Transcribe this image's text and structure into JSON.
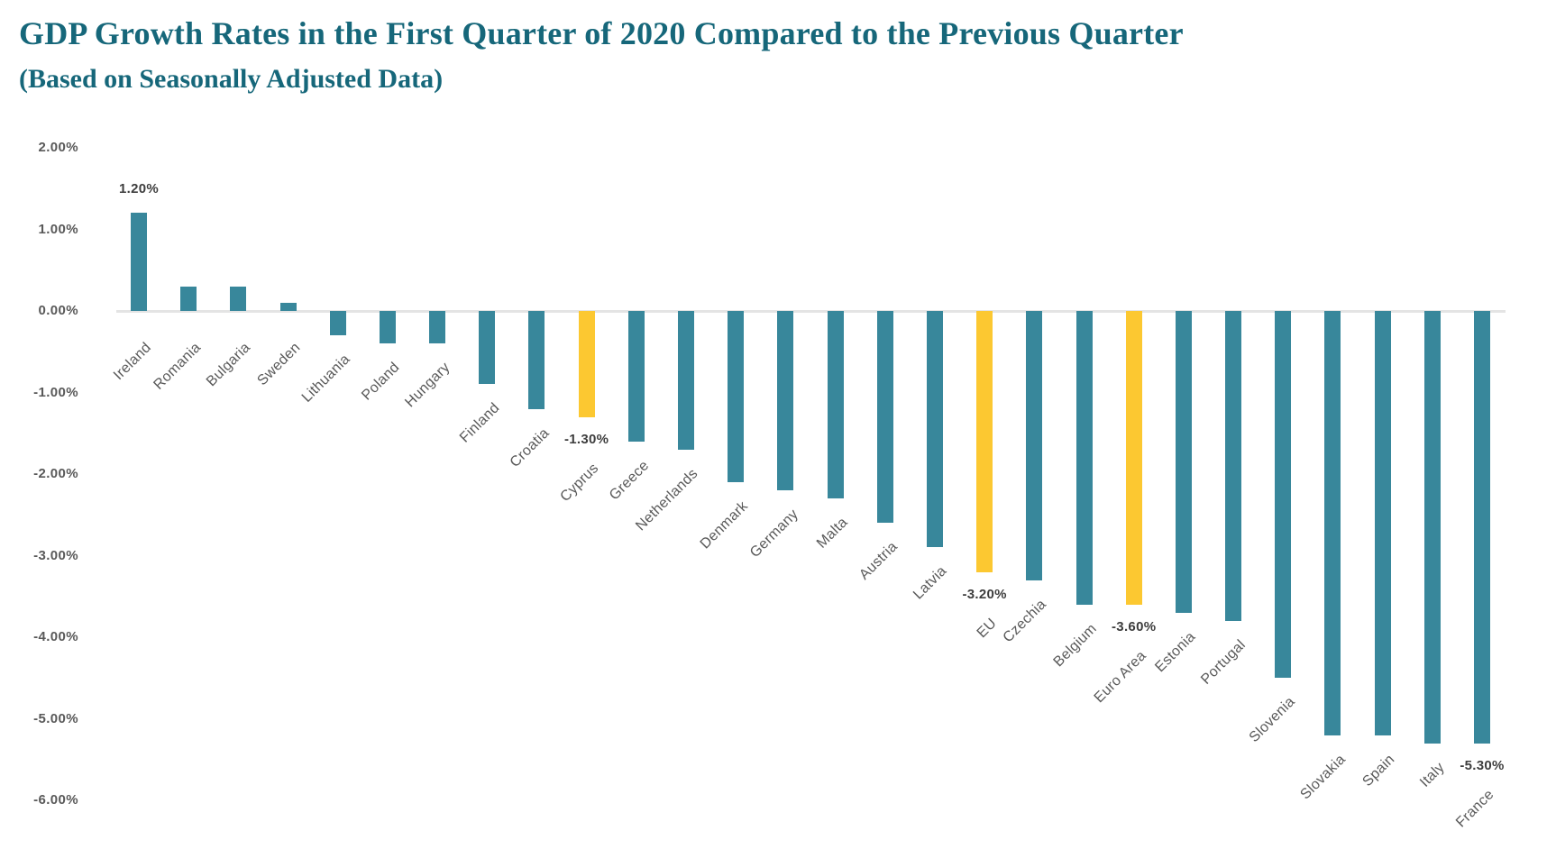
{
  "header": {
    "title": "GDP Growth Rates in the First Quarter of 2020 Compared to the Previous Quarter",
    "subtitle": "(Based on Seasonally Adjusted Data)"
  },
  "colors": {
    "bar_teal": "#38879B",
    "bar_highlight_yellow": "#FCC831",
    "title_teal": "#16677A",
    "axis_text_gray": "#595959",
    "data_label_gray": "#3D3D3D",
    "zero_line_gray": "#E4E4E4",
    "background": "#FFFFFF"
  },
  "chart_data": {
    "type": "bar",
    "title": "GDP Growth Rates in the First Quarter of 2020 Compared to the Previous Quarter",
    "subtitle": "(Based on Seasonally Adjusted Data)",
    "unit": "%",
    "categories": [
      "Ireland",
      "Romania",
      "Bulgaria",
      "Sweden",
      "Lithuania",
      "Poland",
      "Hungary",
      "Finland",
      "Croatia",
      "Cyprus",
      "Greece",
      "Netherlands",
      "Denmark",
      "Germany",
      "Malta",
      "Austria",
      "Latvia",
      "EU",
      "Czechia",
      "Belgium",
      "Euro Area",
      "Estonia",
      "Portugal",
      "Slovenia",
      "Slovakia",
      "Spain",
      "Italy",
      "France"
    ],
    "values": [
      1.2,
      0.3,
      0.3,
      0.1,
      -0.3,
      -0.4,
      -0.4,
      -0.9,
      -1.2,
      -1.3,
      -1.6,
      -1.7,
      -2.1,
      -2.2,
      -2.3,
      -2.6,
      -2.9,
      -3.2,
      -3.3,
      -3.6,
      -3.6,
      -3.7,
      -3.8,
      -4.5,
      -5.2,
      -5.2,
      -5.3,
      -5.3
    ],
    "highlighted_categories": [
      "Cyprus",
      "EU",
      "Euro Area"
    ],
    "data_labels": [
      {
        "category": "Ireland",
        "text": "1.20%",
        "position": "above"
      },
      {
        "category": "Cyprus",
        "text": "-1.30%",
        "position": "below"
      },
      {
        "category": "EU",
        "text": "-3.20%",
        "position": "below"
      },
      {
        "category": "Euro Area",
        "text": "-3.60%",
        "position": "below"
      },
      {
        "category": "France",
        "text": "-5.30%",
        "position": "below"
      }
    ],
    "y_axis": {
      "tick_labels": [
        "2.00%",
        "1.00%",
        "0.00%",
        "-1.00%",
        "-2.00%",
        "-3.00%",
        "-4.00%",
        "-5.00%",
        "-6.00%"
      ],
      "tick_values": [
        2,
        1,
        0,
        -1,
        -2,
        -3,
        -4,
        -5,
        -6
      ]
    },
    "ylim": [
      -6.6,
      2.2
    ],
    "grid": false,
    "legend_position": "none"
  }
}
